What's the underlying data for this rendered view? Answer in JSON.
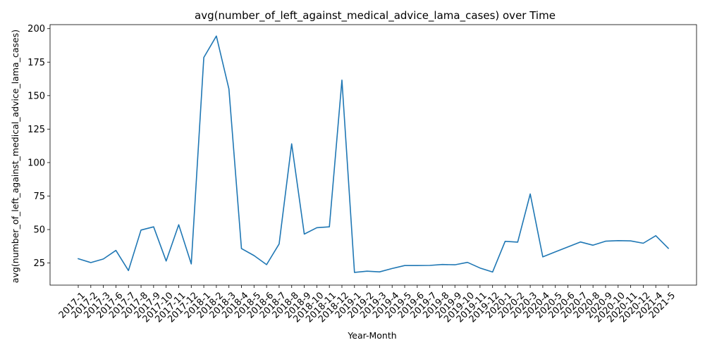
{
  "chart_data": {
    "type": "line",
    "title": "avg(number_of_left_against_medical_advice_lama_cases) over Time",
    "xlabel": "Year-Month",
    "ylabel": "avg(number_of_left_against_medical_advice_lama_cases)",
    "ylim": [
      8.5,
      203
    ],
    "yticks": [
      25,
      50,
      75,
      100,
      125,
      150,
      175,
      200
    ],
    "grid": false,
    "legend": "none",
    "series": [
      {
        "color": "#1f77b4",
        "x": [
          "2017-1",
          "2017-2",
          "2017-3",
          "2017-6",
          "2017-7",
          "2017-8",
          "2017-9",
          "2017-10",
          "2017-11",
          "2017-12",
          "2018-1",
          "2018-2",
          "2018-3",
          "2018-4",
          "2018-5",
          "2018-6",
          "2018-7",
          "2018-8",
          "2018-9",
          "2018-10",
          "2018-11",
          "2018-12",
          "2019-1",
          "2019-2",
          "2019-3",
          "2019-4",
          "2019-5",
          "2019-6",
          "2019-7",
          "2019-8",
          "2019-9",
          "2019-10",
          "2019-11",
          "2019-12",
          "2020-1",
          "2020-2",
          "2020-3",
          "2020-4",
          "2020-5",
          "2020-6",
          "2020-7",
          "2020-8",
          "2020-9",
          "2020-10",
          "2020-11",
          "2020-12",
          "2021-4",
          "2021-5"
        ],
        "values": [
          28.2,
          25.3,
          28.0,
          34.4,
          19.4,
          49.6,
          52.0,
          26.5,
          53.6,
          24.3,
          178.5,
          194.5,
          155.0,
          35.8,
          30.6,
          23.8,
          39.2,
          114.0,
          46.6,
          51.4,
          52.0,
          161.6,
          18.0,
          18.9,
          18.4,
          20.9,
          23.1,
          23.1,
          23.2,
          23.9,
          23.7,
          25.5,
          21.3,
          18.3,
          41.2,
          40.6,
          76.6,
          29.6,
          33.3,
          37.0,
          40.7,
          38.3,
          41.3,
          41.7,
          41.5,
          39.8,
          45.4,
          36.0
        ]
      }
    ]
  }
}
